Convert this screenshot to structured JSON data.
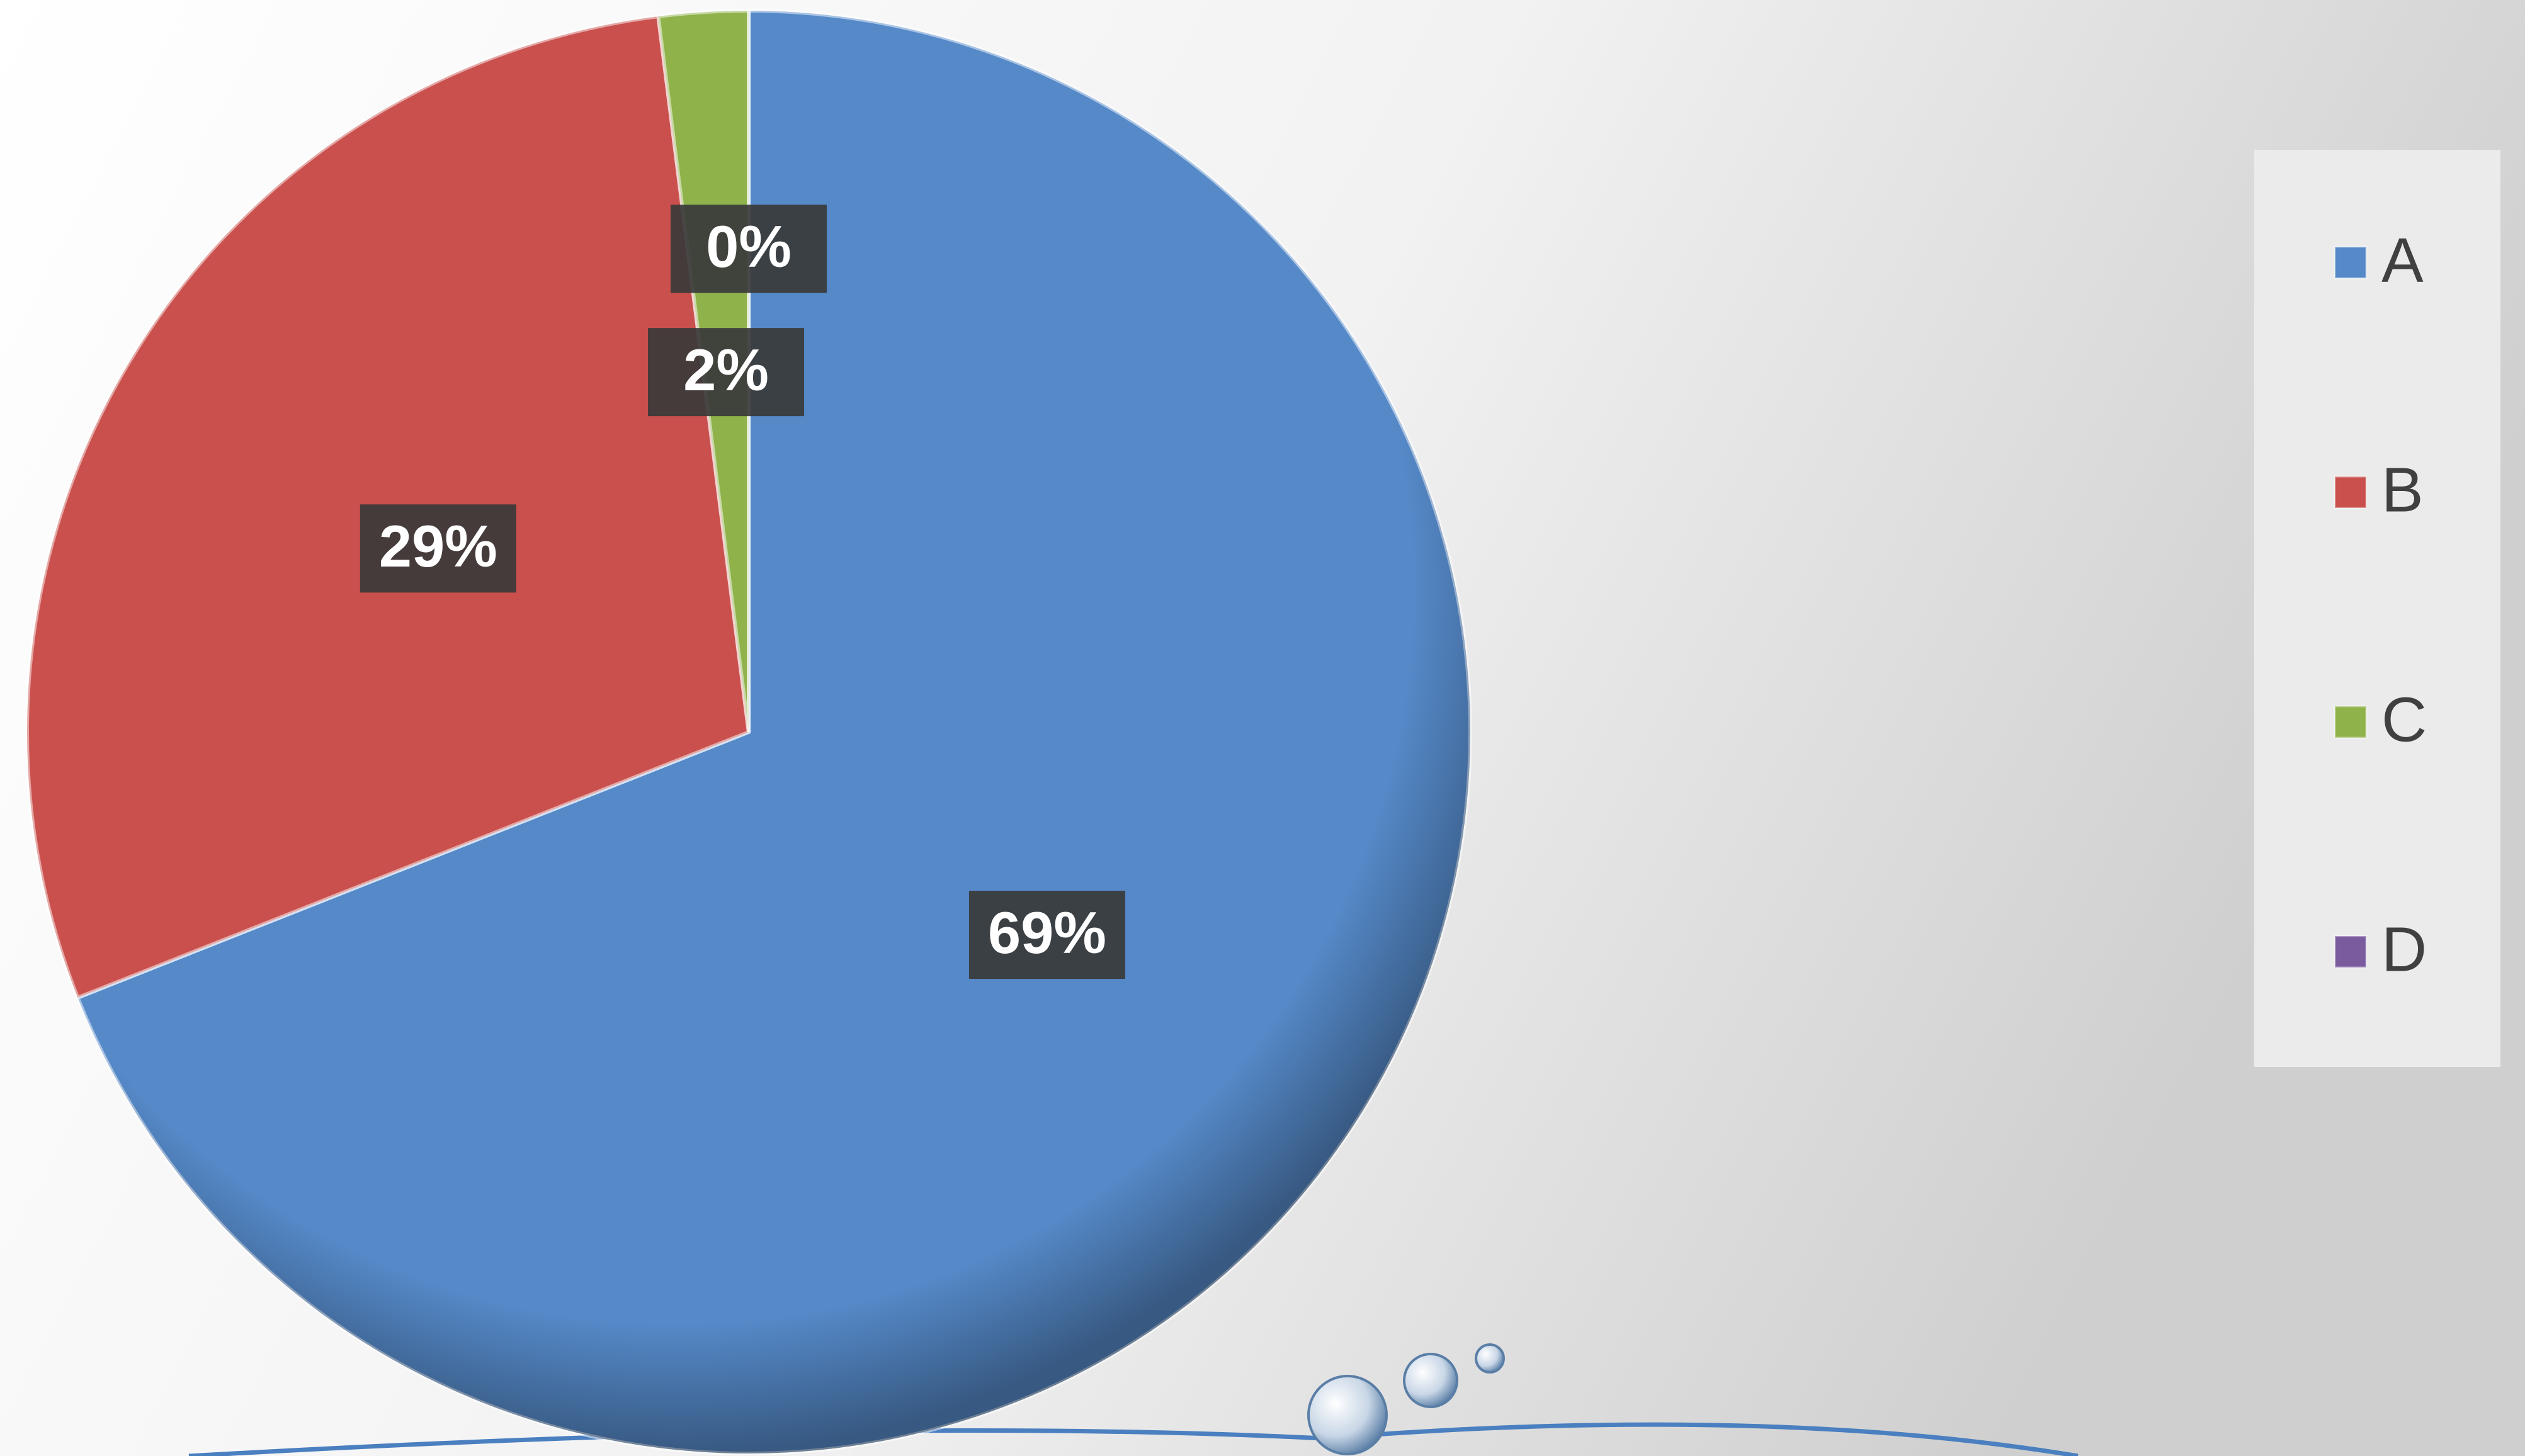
{
  "chart_data": {
    "type": "pie",
    "categories": [
      "A",
      "B",
      "C",
      "D"
    ],
    "values": [
      69,
      29,
      2,
      0
    ],
    "value_labels": [
      "69%",
      "29%",
      "2%",
      "0%"
    ],
    "colors": [
      "#5589c8",
      "#c9504d",
      "#8fb24a",
      "#7a5b9e"
    ],
    "legend": "right"
  }
}
